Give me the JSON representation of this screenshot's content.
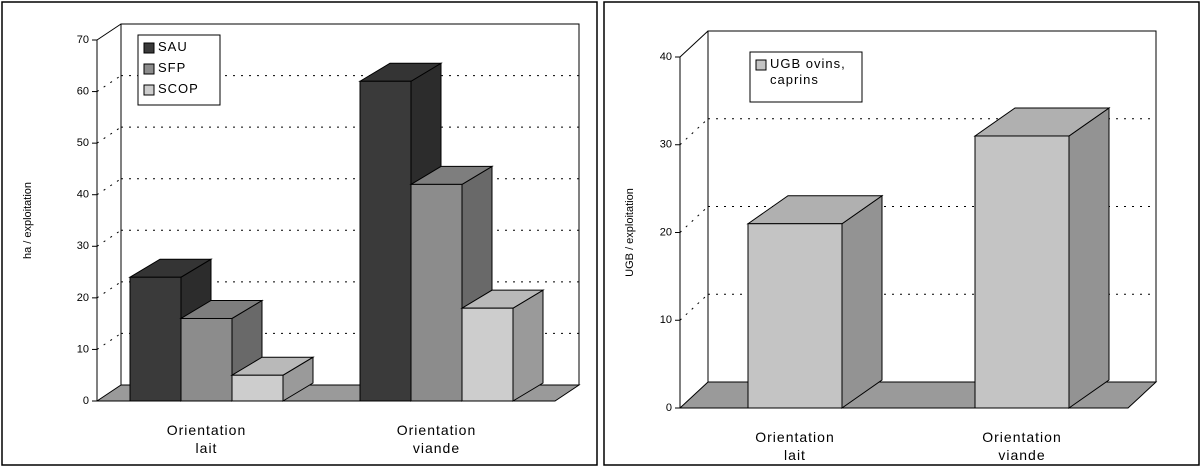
{
  "chart_data": [
    {
      "type": "bar",
      "ylabel": "ha / exploitation",
      "categories": [
        "Orientation lait",
        "Orientation viande"
      ],
      "series": [
        {
          "name": "SAU",
          "color": "#3a3a3a",
          "values": [
            24,
            62
          ]
        },
        {
          "name": "SFP",
          "color": "#8c8c8c",
          "values": [
            16,
            42
          ]
        },
        {
          "name": "SCOP",
          "color": "#cdcdcd",
          "values": [
            5,
            18
          ]
        }
      ],
      "ylim": [
        0,
        70
      ],
      "yticks": [
        0,
        10,
        20,
        30,
        40,
        50,
        60,
        70
      ],
      "grid": true,
      "legend": "upper left"
    },
    {
      "type": "bar",
      "ylabel": "UGB / exploitation",
      "categories": [
        "Orientation lait",
        "Orientation viande"
      ],
      "series": [
        {
          "name": "UGB ovins, caprins",
          "color": "#c4c4c4",
          "values": [
            21,
            31
          ]
        }
      ],
      "ylim": [
        0,
        40
      ],
      "yticks": [
        0,
        10,
        20,
        30,
        40
      ],
      "grid": true,
      "legend": "upper left"
    }
  ]
}
